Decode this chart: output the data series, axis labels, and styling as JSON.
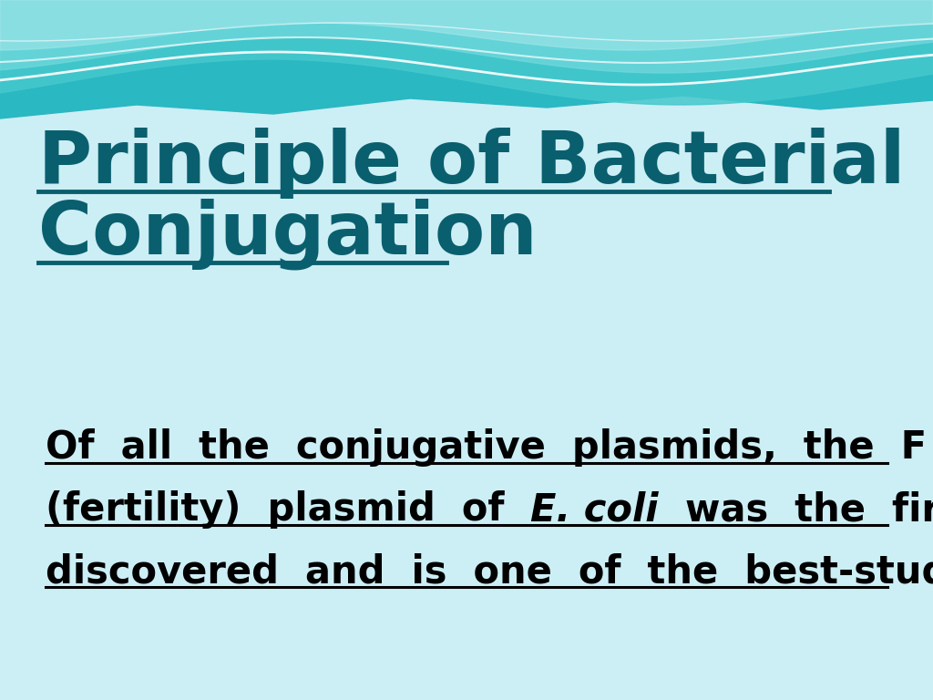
{
  "bg_color": "#cceef5",
  "title_line1": "Principle of Bacterial",
  "title_line2": "Conjugation",
  "title_color": "#0a5f6e",
  "title_fontsize": 58,
  "body_color": "#000000",
  "body_fontsize": 30,
  "wave_color_dark": "#2ab5c0",
  "wave_color_mid": "#5ecfcf",
  "wave_color_light": "#90dde0",
  "underline_title_color": "#0a5f6e",
  "underline_body_color": "#000000",
  "line1_body": "Of  all  the  conjugative  plasmids,  the  F",
  "line2_body_pre": "(fertility)  plasmid  of  ",
  "line2_body_italic": "E. coli",
  "line2_body_post": "  was  the  first",
  "line3_body": "discovered  and  is  one  of  the  best-studied"
}
